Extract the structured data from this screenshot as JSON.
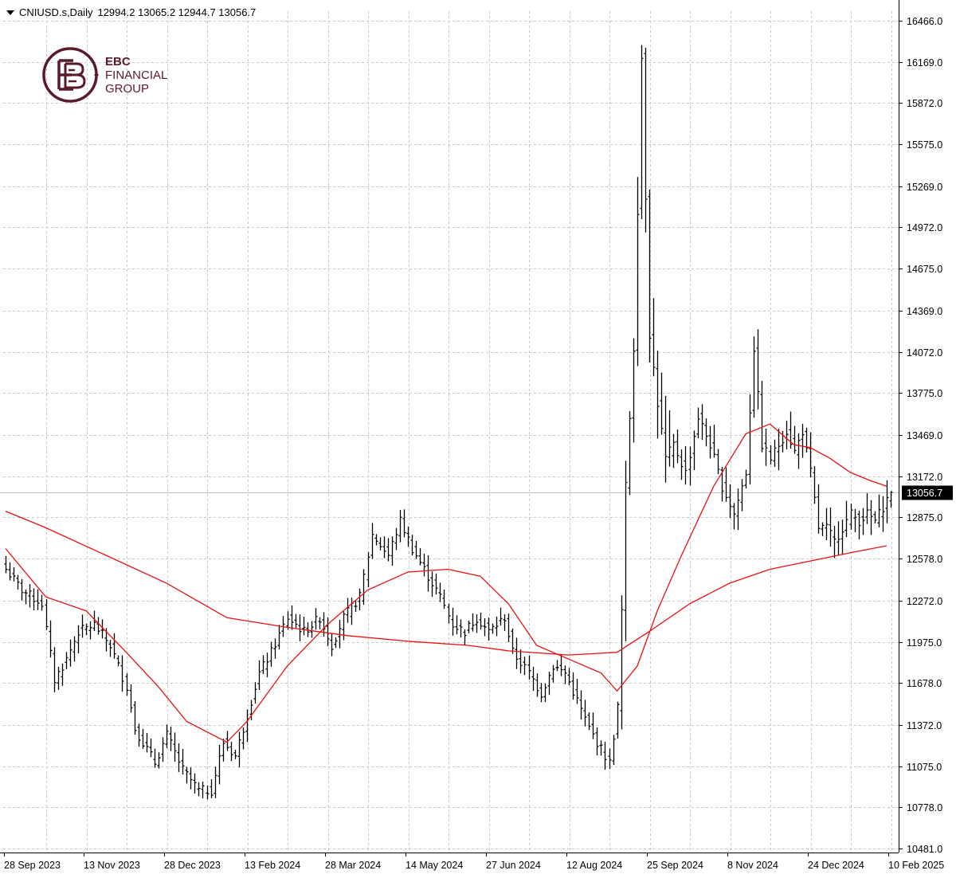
{
  "header": {
    "symbol": "CNIUSD.s,Daily",
    "ohlc": "12994.2 13065.2 12944.7 13056.7"
  },
  "logo": {
    "line1": "EBC",
    "line2": "FINANCIAL",
    "line3": "GROUP",
    "color": "#5a1a2a"
  },
  "current_price_label": "13056.7",
  "chart_data": {
    "type": "ohlc",
    "title": "",
    "xlabel": "",
    "ylabel": "",
    "ylim": [
      10481,
      16466
    ],
    "grid": true,
    "colors": {
      "bars": "#000000",
      "ma_fast": "#e81010",
      "ma_slow": "#e81010",
      "price_line": "#c0c0c0",
      "label_bg": "#000000"
    },
    "x_labels": [
      "28 Sep 2023",
      "13 Nov 2023",
      "28 Dec 2023",
      "13 Feb 2024",
      "28 Mar 2024",
      "14 May 2024",
      "27 Jun 2024",
      "12 Aug 2024",
      "25 Sep 2024",
      "8 Nov 2024",
      "24 Dec 2024",
      "10 Feb 2025"
    ],
    "y_labels": [
      "16466.0",
      "16169.0",
      "15872.0",
      "15575.0",
      "15269.0",
      "14972.0",
      "14675.0",
      "14369.0",
      "14072.0",
      "13775.0",
      "13469.0",
      "13172.0",
      "12875.0",
      "12578.0",
      "12272.0",
      "11975.0",
      "11678.0",
      "11372.0",
      "11075.0",
      "10778.0",
      "10481.0"
    ],
    "y_ticks": [
      16466.0,
      16169.0,
      15872.0,
      15575.0,
      15269.0,
      14972.0,
      14675.0,
      14369.0,
      14072.0,
      13775.0,
      13469.0,
      13172.0,
      12875.0,
      12578.0,
      12272.0,
      11975.0,
      11678.0,
      11372.0,
      11075.0,
      10778.0,
      10481.0
    ],
    "current_price": 13056.7,
    "close_anchors": [
      [
        0,
        12500
      ],
      [
        4,
        12350
      ],
      [
        9,
        12250
      ],
      [
        12,
        11700
      ],
      [
        15,
        11850
      ],
      [
        18,
        12050
      ],
      [
        22,
        12100
      ],
      [
        26,
        11950
      ],
      [
        30,
        11650
      ],
      [
        32,
        11350
      ],
      [
        37,
        11100
      ],
      [
        40,
        11300
      ],
      [
        44,
        11050
      ],
      [
        48,
        10900
      ],
      [
        51,
        10900
      ],
      [
        54,
        11250
      ],
      [
        57,
        11150
      ],
      [
        60,
        11450
      ],
      [
        63,
        11750
      ],
      [
        66,
        11900
      ],
      [
        70,
        12150
      ],
      [
        74,
        12050
      ],
      [
        78,
        12150
      ],
      [
        81,
        11950
      ],
      [
        84,
        12150
      ],
      [
        88,
        12300
      ],
      [
        91,
        12750
      ],
      [
        95,
        12600
      ],
      [
        98,
        12850
      ],
      [
        101,
        12650
      ],
      [
        105,
        12450
      ],
      [
        108,
        12300
      ],
      [
        111,
        12100
      ],
      [
        114,
        12050
      ],
      [
        117,
        12150
      ],
      [
        120,
        12050
      ],
      [
        124,
        12150
      ],
      [
        126,
        11900
      ],
      [
        130,
        11750
      ],
      [
        133,
        11600
      ],
      [
        136,
        11800
      ],
      [
        139,
        11750
      ],
      [
        142,
        11550
      ],
      [
        145,
        11350
      ],
      [
        148,
        11200
      ],
      [
        150,
        11100
      ],
      [
        152,
        11500
      ],
      [
        153,
        12200
      ],
      [
        154,
        13100
      ],
      [
        156,
        14100
      ],
      [
        157,
        15100
      ],
      [
        158,
        16200
      ],
      [
        160,
        14200
      ],
      [
        162,
        13700
      ],
      [
        164,
        13300
      ],
      [
        166,
        13400
      ],
      [
        169,
        13200
      ],
      [
        172,
        13600
      ],
      [
        175,
        13400
      ],
      [
        178,
        13100
      ],
      [
        181,
        12900
      ],
      [
        184,
        13200
      ],
      [
        186,
        14100
      ],
      [
        188,
        13400
      ],
      [
        190,
        13300
      ],
      [
        192,
        13400
      ],
      [
        194,
        13500
      ],
      [
        196,
        13350
      ],
      [
        198,
        13500
      ],
      [
        200,
        13200
      ],
      [
        202,
        12800
      ],
      [
        204,
        12800
      ],
      [
        206,
        12700
      ],
      [
        208,
        12800
      ],
      [
        210,
        12900
      ],
      [
        212,
        12850
      ],
      [
        214,
        12900
      ],
      [
        216,
        12850
      ],
      [
        218,
        12950
      ],
      [
        220,
        13060
      ]
    ],
    "series": [
      {
        "name": "",
        "type": "moving-average-fast",
        "points": [
          [
            0,
            12650
          ],
          [
            10,
            12300
          ],
          [
            20,
            12200
          ],
          [
            30,
            11900
          ],
          [
            38,
            11650
          ],
          [
            45,
            11400
          ],
          [
            55,
            11250
          ],
          [
            60,
            11400
          ],
          [
            70,
            11800
          ],
          [
            80,
            12100
          ],
          [
            90,
            12350
          ],
          [
            100,
            12480
          ],
          [
            110,
            12500
          ],
          [
            118,
            12450
          ],
          [
            125,
            12250
          ],
          [
            132,
            11950
          ],
          [
            140,
            11850
          ],
          [
            148,
            11750
          ],
          [
            152,
            11620
          ],
          [
            157,
            11800
          ],
          [
            162,
            12200
          ],
          [
            168,
            12600
          ],
          [
            176,
            13100
          ],
          [
            184,
            13480
          ],
          [
            190,
            13550
          ],
          [
            196,
            13400
          ],
          [
            200,
            13380
          ],
          [
            205,
            13300
          ],
          [
            210,
            13200
          ],
          [
            215,
            13140
          ],
          [
            219,
            13100
          ]
        ]
      },
      {
        "name": "",
        "type": "moving-average-slow",
        "points": [
          [
            0,
            12920
          ],
          [
            10,
            12800
          ],
          [
            25,
            12600
          ],
          [
            40,
            12400
          ],
          [
            55,
            12150
          ],
          [
            70,
            12080
          ],
          [
            85,
            12020
          ],
          [
            100,
            11980
          ],
          [
            115,
            11950
          ],
          [
            125,
            11910
          ],
          [
            140,
            11880
          ],
          [
            152,
            11900
          ],
          [
            160,
            12050
          ],
          [
            170,
            12250
          ],
          [
            180,
            12400
          ],
          [
            190,
            12500
          ],
          [
            200,
            12560
          ],
          [
            210,
            12620
          ],
          [
            219,
            12670
          ]
        ]
      }
    ]
  }
}
